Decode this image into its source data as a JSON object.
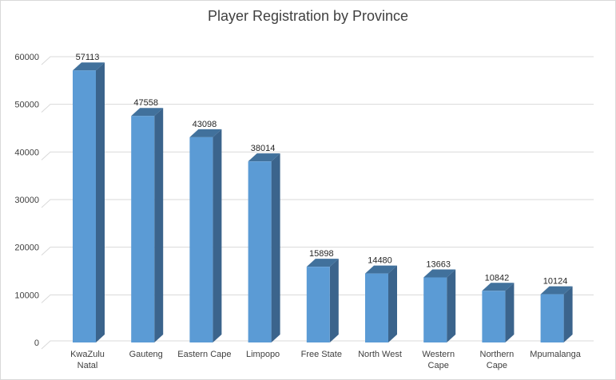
{
  "chart_data": {
    "type": "bar",
    "title": "Player Registration by Province",
    "xlabel": "",
    "ylabel": "",
    "categories": [
      "KwaZulu Natal",
      "Gauteng",
      "Eastern Cape",
      "Limpopo",
      "Free State",
      "North West",
      "Western Cape",
      "Northern Cape",
      "Mpumalanga"
    ],
    "category_lines": [
      [
        "KwaZulu",
        "Natal"
      ],
      [
        "Gauteng"
      ],
      [
        "Eastern Cape"
      ],
      [
        "Limpopo"
      ],
      [
        "Free State"
      ],
      [
        "North West"
      ],
      [
        "Western",
        "Cape"
      ],
      [
        "Northern",
        "Cape"
      ],
      [
        "Mpumalanga"
      ]
    ],
    "values": [
      57113,
      47558,
      43098,
      38014,
      15898,
      14480,
      13663,
      10842,
      10124
    ],
    "ylim": [
      0,
      60000
    ],
    "yticks": [
      0,
      10000,
      20000,
      30000,
      40000,
      50000,
      60000
    ],
    "grid": true,
    "legend": "none",
    "style": "3d-column",
    "colors": {
      "bar_front": "#5b9bd5",
      "bar_side": "#3b648c",
      "bar_top": "#41719c",
      "grid": "#d9d9d9",
      "text": "#404040"
    }
  }
}
